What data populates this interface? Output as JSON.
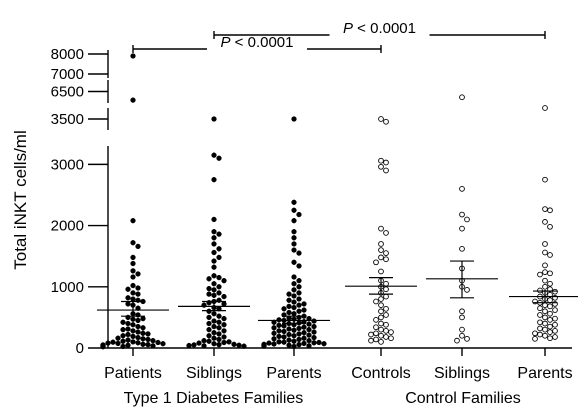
{
  "chart_data": {
    "type": "scatter",
    "ylabel": "Total iNKT cells/ml",
    "categories": [
      "Patients",
      "Siblings",
      "Parents",
      "Controls",
      "Siblings",
      "Parents"
    ],
    "groups": [
      {
        "label": "Type 1 Diabetes Families",
        "categories": [
          0,
          1,
          2
        ]
      },
      {
        "label": "Control Families",
        "categories": [
          3,
          4,
          5
        ]
      }
    ],
    "y_axis": {
      "type": "broken",
      "segments": [
        {
          "range": [
            0,
            3300
          ],
          "ticks": [
            0,
            1000,
            2000,
            3000
          ],
          "tick_labels": [
            "0",
            "1000",
            "2000",
            "3000"
          ]
        },
        {
          "range": [
            3300,
            3700
          ],
          "ticks": [
            3500
          ],
          "tick_labels": [
            "3500"
          ]
        },
        {
          "range": [
            6300,
            6700
          ],
          "ticks": [
            6500
          ],
          "tick_labels": [
            "6500"
          ]
        },
        {
          "range": [
            6800,
            8200
          ],
          "ticks": [
            7000,
            8000
          ],
          "tick_labels": [
            "7000",
            "8000"
          ]
        }
      ]
    },
    "marker_style": [
      "filled",
      "filled",
      "filled",
      "open",
      "open",
      "open"
    ],
    "series": [
      {
        "name": "",
        "category": 0,
        "mean": 620,
        "sem_low": 520,
        "sem_high": 760,
        "values": [
          7900,
          6350,
          2080,
          1720,
          1660,
          1480,
          1380,
          1260,
          1210,
          1160,
          1020,
          980,
          960,
          900,
          880,
          820,
          800,
          780,
          760,
          720,
          700,
          650,
          560,
          540,
          500,
          480,
          470,
          450,
          420,
          400,
          380,
          350,
          330,
          310,
          300,
          280,
          260,
          240,
          230,
          220,
          200,
          190,
          170,
          160,
          150,
          140,
          130,
          120,
          110,
          100,
          95,
          90,
          85,
          80,
          75,
          70,
          60,
          55,
          50,
          45,
          40,
          35,
          30,
          25,
          20
        ]
      },
      {
        "name": "",
        "category": 1,
        "mean": 680,
        "sem_low": 610,
        "sem_high": 760,
        "values": [
          3500,
          3150,
          3100,
          2750,
          2100,
          1900,
          1860,
          1800,
          1700,
          1620,
          1560,
          1480,
          1420,
          1320,
          1180,
          1150,
          1130,
          1100,
          1050,
          1000,
          970,
          950,
          900,
          880,
          860,
          840,
          780,
          760,
          740,
          720,
          700,
          660,
          640,
          600,
          560,
          520,
          500,
          480,
          440,
          420,
          400,
          380,
          350,
          330,
          300,
          280,
          250,
          230,
          200,
          180,
          160,
          140,
          120,
          110,
          100,
          90,
          80,
          70,
          60,
          55,
          50,
          45,
          40,
          35,
          30
        ]
      },
      {
        "name": "",
        "category": 2,
        "mean": 450,
        "sem_low": 400,
        "sem_high": 520,
        "values": [
          3500,
          2380,
          2250,
          2180,
          2080,
          1900,
          1800,
          1700,
          1600,
          1550,
          1400,
          1340,
          1160,
          1100,
          1050,
          1000,
          950,
          900,
          880,
          850,
          800,
          780,
          750,
          720,
          700,
          680,
          660,
          640,
          620,
          600,
          580,
          560,
          540,
          520,
          500,
          490,
          480,
          470,
          460,
          450,
          440,
          430,
          420,
          410,
          400,
          390,
          380,
          370,
          360,
          350,
          340,
          330,
          320,
          310,
          300,
          290,
          280,
          270,
          260,
          250,
          240,
          230,
          220,
          210,
          200,
          190,
          180,
          170,
          160,
          150,
          140,
          130,
          120,
          110,
          100,
          95,
          90,
          85,
          80,
          75,
          70,
          65,
          60,
          55,
          50,
          45,
          40,
          35,
          30,
          25
        ]
      },
      {
        "name": "",
        "category": 3,
        "mean": 1010,
        "sem_low": 880,
        "sem_high": 1150,
        "values": [
          3500,
          3450,
          3060,
          3030,
          2960,
          2900,
          1950,
          1880,
          1700,
          1600,
          1550,
          1480,
          1450,
          1400,
          1250,
          1100,
          1050,
          1000,
          960,
          900,
          840,
          800,
          760,
          700,
          640,
          600,
          540,
          500,
          460,
          400,
          380,
          340,
          300,
          280,
          260,
          240,
          220,
          200,
          180,
          160,
          140,
          120,
          100
        ]
      },
      {
        "name": "",
        "category": 4,
        "mean": 1130,
        "sem_low": 820,
        "sem_high": 1420,
        "values": [
          6400,
          2600,
          2180,
          2100,
          1950,
          1620,
          1300,
          1100,
          1000,
          950,
          600,
          500,
          300,
          200,
          150,
          120
        ]
      },
      {
        "name": "",
        "category": 5,
        "mean": 840,
        "sem_low": 740,
        "sem_high": 930,
        "values": [
          4000,
          2750,
          2270,
          2250,
          2060,
          1980,
          1700,
          1560,
          1520,
          1350,
          1240,
          1220,
          1200,
          1100,
          1050,
          1000,
          960,
          940,
          920,
          900,
          870,
          840,
          820,
          800,
          780,
          760,
          740,
          720,
          700,
          680,
          650,
          620,
          600,
          560,
          540,
          500,
          480,
          460,
          420,
          400,
          380,
          350,
          320,
          300,
          280,
          260,
          240,
          220,
          200,
          180,
          160,
          150
        ]
      }
    ],
    "annotations": [
      {
        "text_italic": "P",
        "text": " < 0.0001",
        "from_category": 0,
        "to_category": 3
      },
      {
        "text_italic": "P",
        "text": " < 0.0001",
        "from_category": 1,
        "to_category": 5
      }
    ]
  }
}
